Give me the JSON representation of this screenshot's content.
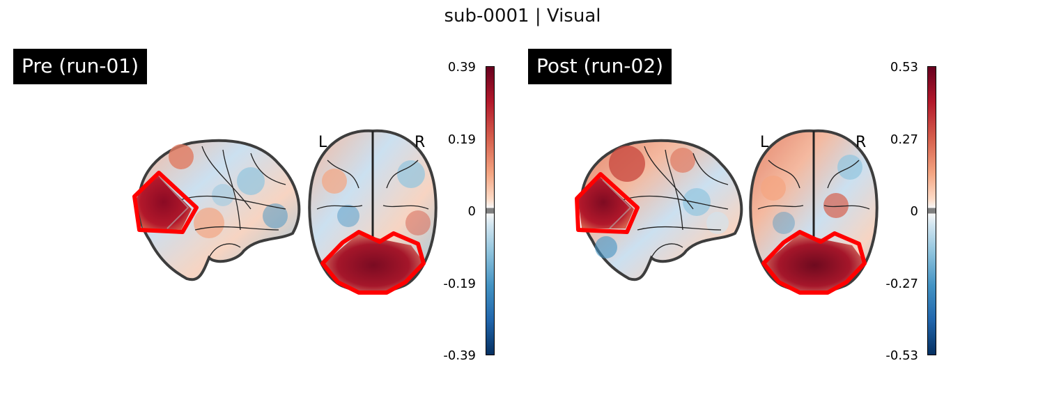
{
  "title": "sub-0001 | Visual",
  "panels": [
    {
      "label": "Pre (run-01)",
      "orientation_left": "L",
      "orientation_right": "R",
      "colorbar": {
        "max": "0.39",
        "mid_high": "0.19",
        "zero": "0",
        "mid_low": "-0.19",
        "min": "-0.39"
      }
    },
    {
      "label": "Post (run-02)",
      "orientation_left": "L",
      "orientation_right": "R",
      "colorbar": {
        "max": "0.53",
        "mid_high": "0.27",
        "zero": "0",
        "mid_low": "-0.27",
        "min": "-0.53"
      }
    }
  ],
  "colors": {
    "roi_outline": "#ff0000",
    "colormap_high": "#67001f",
    "colormap_low": "#053061",
    "brain_outline": "#333333"
  }
}
